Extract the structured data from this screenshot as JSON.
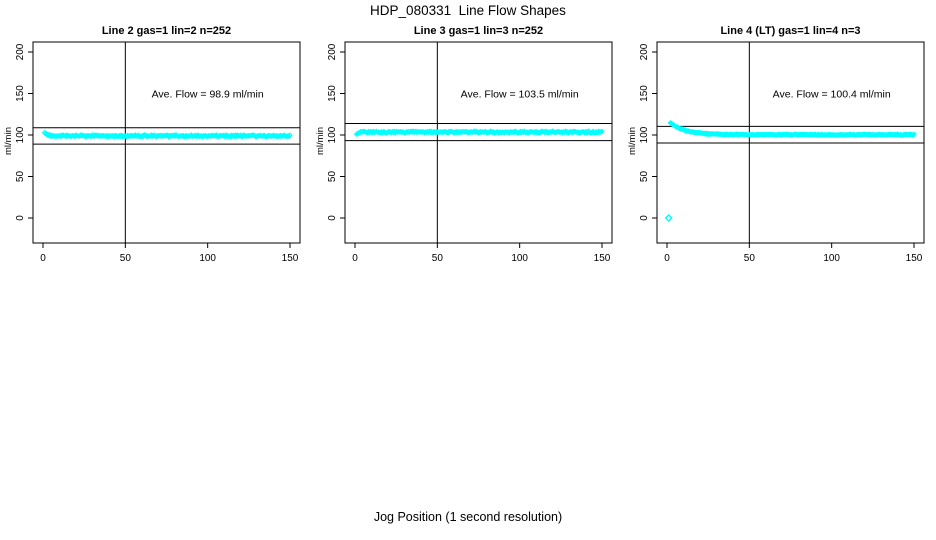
{
  "chart_data": {
    "type": "scatter",
    "title": "HDP_080331  Line Flow Shapes",
    "xlabel": "Jog Position (1 second resolution)",
    "ylabel": "ml/min",
    "marker": "open-diamond",
    "point_color": "#00FFFF",
    "axis_color": "#000000",
    "background": "#FFFFFF",
    "grid": false,
    "xlim": [
      0,
      150
    ],
    "ylim": [
      0,
      200
    ],
    "x_ticks": [
      0,
      50,
      100,
      150
    ],
    "y_ticks": [
      0,
      50,
      100,
      150,
      200
    ],
    "vline_x": 50,
    "seed": 20080331,
    "panels": [
      {
        "title": "Line 2 gas=1 lin=2 n=252",
        "gas": 1,
        "lin": 2,
        "n": 252,
        "ave_flow": 98.9,
        "annotation": "Ave. Flow =  98.9  ml/min",
        "annotation_xy": [
          100,
          150
        ],
        "hlines": [
          89.0,
          108.8
        ],
        "band": {
          "x_start": 1,
          "x_end": 150,
          "step": 0.5,
          "base": 98.9,
          "noise": 1.4
        },
        "transient": {
          "amp": 4.5,
          "tau": 1.2,
          "x0": 1
        },
        "outliers": []
      },
      {
        "title": "Line 3 gas=1 lin=3 n=252",
        "gas": 1,
        "lin": 3,
        "n": 252,
        "ave_flow": 103.5,
        "annotation": "Ave. Flow =  103.5  ml/min",
        "annotation_xy": [
          100,
          150
        ],
        "hlines": [
          93.2,
          113.9
        ],
        "band": {
          "x_start": 1,
          "x_end": 150,
          "step": 0.5,
          "base": 103.5,
          "noise": 1.3
        },
        "transient": {
          "amp": -1.5,
          "tau": 1.5,
          "x0": 1
        },
        "outliers": []
      },
      {
        "title": "Line 4 (LT) gas=1 lin=4 n=3",
        "gas": 1,
        "lin": 4,
        "n": 3,
        "ave_flow": 100.4,
        "annotation": "Ave. Flow =  100.4  ml/min",
        "annotation_xy": [
          100,
          150
        ],
        "hlines": [
          90.4,
          110.4
        ],
        "band": {
          "x_start": 2,
          "x_end": 150,
          "step": 0.5,
          "base": 100.4,
          "noise": 0.9
        },
        "transient": {
          "amp": 14.5,
          "tau": 9,
          "x0": 2
        },
        "outliers": [
          [
            1,
            0
          ]
        ]
      }
    ]
  }
}
